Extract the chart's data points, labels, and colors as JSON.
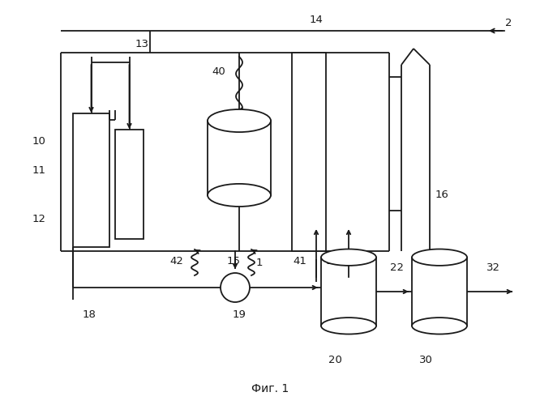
{
  "fig_label": "Фиг. 1",
  "bg_color": "#ffffff",
  "line_color": "#1a1a1a",
  "fig_width": 6.66,
  "fig_height": 5.0,
  "dpi": 100
}
